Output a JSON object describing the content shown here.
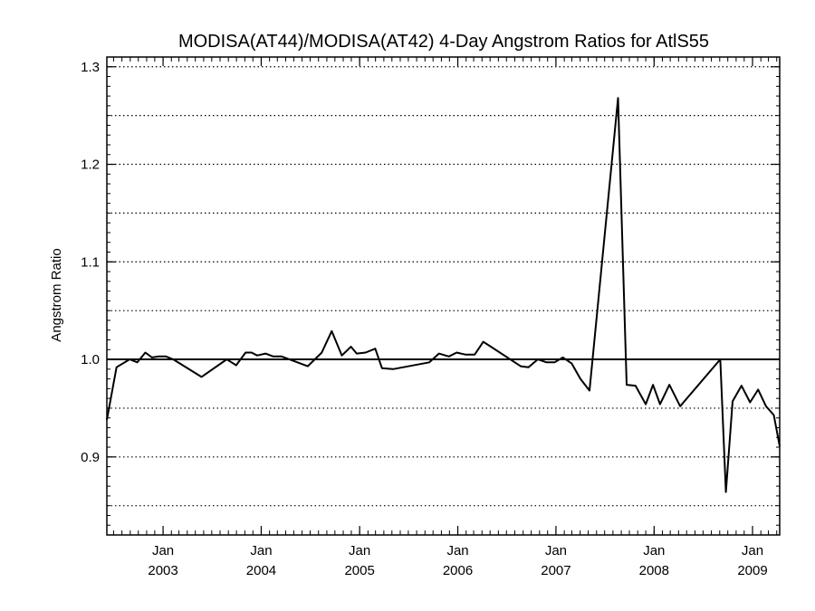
{
  "chart_data": {
    "type": "line",
    "title": "MODISA(AT44)/MODISA(AT42) 4-Day Angstrom Ratios for AtlS55",
    "xlabel": "",
    "ylabel": "Angstrom Ratio",
    "ylim": [
      0.82,
      1.31
    ],
    "xlim": [
      "2002-06-06",
      "2009-04-12"
    ],
    "yticks": [
      0.9,
      1.0,
      1.1,
      1.2,
      1.3
    ],
    "ytick_labels": [
      "0.9",
      "1.0",
      "1.1",
      "1.2",
      "1.3"
    ],
    "y_minor_gridlines": [
      0.85,
      0.95,
      1.05,
      1.15,
      1.25
    ],
    "xticks": [
      {
        "date": "2003-01-01",
        "month": "Jan",
        "year": "2003"
      },
      {
        "date": "2004-01-01",
        "month": "Jan",
        "year": "2004"
      },
      {
        "date": "2005-01-01",
        "month": "Jan",
        "year": "2005"
      },
      {
        "date": "2006-01-01",
        "month": "Jan",
        "year": "2006"
      },
      {
        "date": "2007-01-01",
        "month": "Jan",
        "year": "2007"
      },
      {
        "date": "2008-01-01",
        "month": "Jan",
        "year": "2008"
      },
      {
        "date": "2009-01-01",
        "month": "Jan",
        "year": "2009"
      }
    ],
    "reference_line": 1.0,
    "grid": "dotted horizontal",
    "series": [
      {
        "color": "#000000",
        "x": [
          "2002-06-06",
          "2002-07-12",
          "2002-08-30",
          "2002-09-27",
          "2002-10-27",
          "2002-11-21",
          "2002-12-16",
          "2003-01-12",
          "2003-02-08",
          "2003-05-24",
          "2003-08-26",
          "2003-09-30",
          "2003-11-04",
          "2003-11-26",
          "2003-12-17",
          "2004-01-17",
          "2004-02-15",
          "2004-03-17",
          "2004-06-22",
          "2004-08-13",
          "2004-09-19",
          "2004-10-27",
          "2004-11-30",
          "2004-12-21",
          "2005-01-23",
          "2005-02-28",
          "2005-03-25",
          "2005-05-05",
          "2005-09-17",
          "2005-10-23",
          "2005-11-29",
          "2005-12-28",
          "2006-01-29",
          "2006-03-05",
          "2006-04-06",
          "2006-05-10",
          "2006-08-23",
          "2006-09-21",
          "2006-10-26",
          "2006-11-27",
          "2006-12-27",
          "2007-01-27",
          "2007-02-28",
          "2007-04-02",
          "2007-05-06",
          "2007-08-20",
          "2007-09-21",
          "2007-10-24",
          "2007-12-01",
          "2007-12-28",
          "2008-01-23",
          "2008-02-27",
          "2008-04-07",
          "2008-09-03",
          "2008-09-24",
          "2008-10-19",
          "2008-11-21",
          "2008-12-23",
          "2009-01-22",
          "2009-02-20",
          "2009-03-21",
          "2009-04-12"
        ],
        "y": [
          0.938,
          0.992,
          1.0,
          0.997,
          1.007,
          1.002,
          1.003,
          1.003,
          1.0,
          0.982,
          1.0,
          0.994,
          1.007,
          1.007,
          1.004,
          1.006,
          1.003,
          1.003,
          0.993,
          1.007,
          1.029,
          1.004,
          1.013,
          1.006,
          1.007,
          1.011,
          0.991,
          0.99,
          0.997,
          1.006,
          1.003,
          1.007,
          1.005,
          1.005,
          1.018,
          1.012,
          0.993,
          0.992,
          1.0,
          0.997,
          0.997,
          1.002,
          0.996,
          0.98,
          0.968,
          1.268,
          0.974,
          0.973,
          0.954,
          0.974,
          0.954,
          0.974,
          0.952,
          1.0,
          0.864,
          0.957,
          0.973,
          0.956,
          0.969,
          0.952,
          0.943,
          0.911
        ]
      }
    ]
  }
}
